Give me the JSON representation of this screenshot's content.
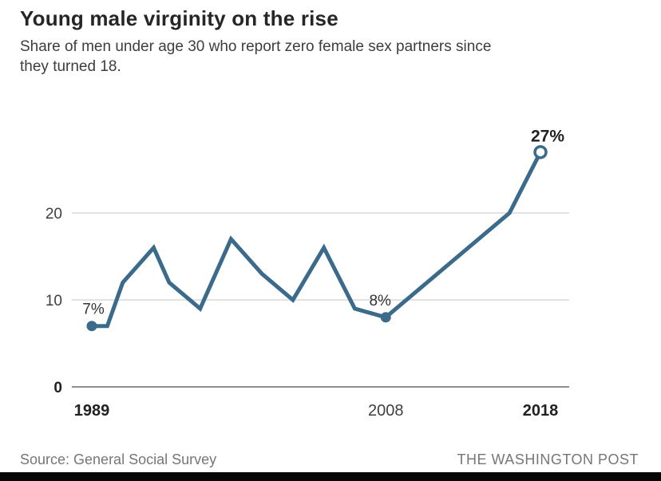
{
  "header": {
    "title": "Young male virginity on the rise",
    "subtitle_line1": "Share of men under age 30 who report zero female sex partners since",
    "subtitle_line2": "they turned 18."
  },
  "footer": {
    "source": "Source: General Social Survey",
    "attribution": "THE WASHINGTON POST"
  },
  "colors": {
    "line": "#3b6a8b",
    "grid": "#d9d9d9",
    "axis": "#8f8f8f",
    "marker_fill": "#3b6a8b",
    "open_marker_fill": "#ffffff",
    "bottom_bar": "#060606"
  },
  "chart_data": {
    "type": "line",
    "title": "Young male virginity on the rise",
    "xlabel": "",
    "ylabel": "",
    "x": [
      1989,
      1990,
      1991,
      1993,
      1994,
      1996,
      1998,
      2000,
      2002,
      2004,
      2006,
      2008,
      2016,
      2018
    ],
    "values": [
      7,
      7,
      12,
      16,
      12,
      9,
      17,
      13,
      10,
      16,
      9,
      8,
      20,
      27
    ],
    "xlim": [
      1989,
      2018
    ],
    "ylim": [
      0,
      30
    ],
    "yticks": [
      {
        "value": 0,
        "label": "0",
        "bold": true
      },
      {
        "value": 10,
        "label": "10",
        "bold": false
      },
      {
        "value": 20,
        "label": "20",
        "bold": false
      }
    ],
    "xticks": [
      {
        "year": 1989,
        "label": "1989",
        "bold": true
      },
      {
        "year": 2008,
        "label": "2008",
        "bold": false
      },
      {
        "year": 2018,
        "label": "2018",
        "bold": true
      }
    ],
    "point_labels": [
      {
        "year": 1989,
        "value": 7,
        "label": "7%",
        "bold": false,
        "marker": "filled",
        "dx": 2
      },
      {
        "year": 2008,
        "value": 8,
        "label": "8%",
        "bold": false,
        "marker": "filled",
        "dx": -7
      },
      {
        "year": 2018,
        "value": 27,
        "label": "27%",
        "bold": true,
        "marker": "open",
        "dx": 9
      }
    ],
    "grid": true,
    "legend": "none"
  }
}
